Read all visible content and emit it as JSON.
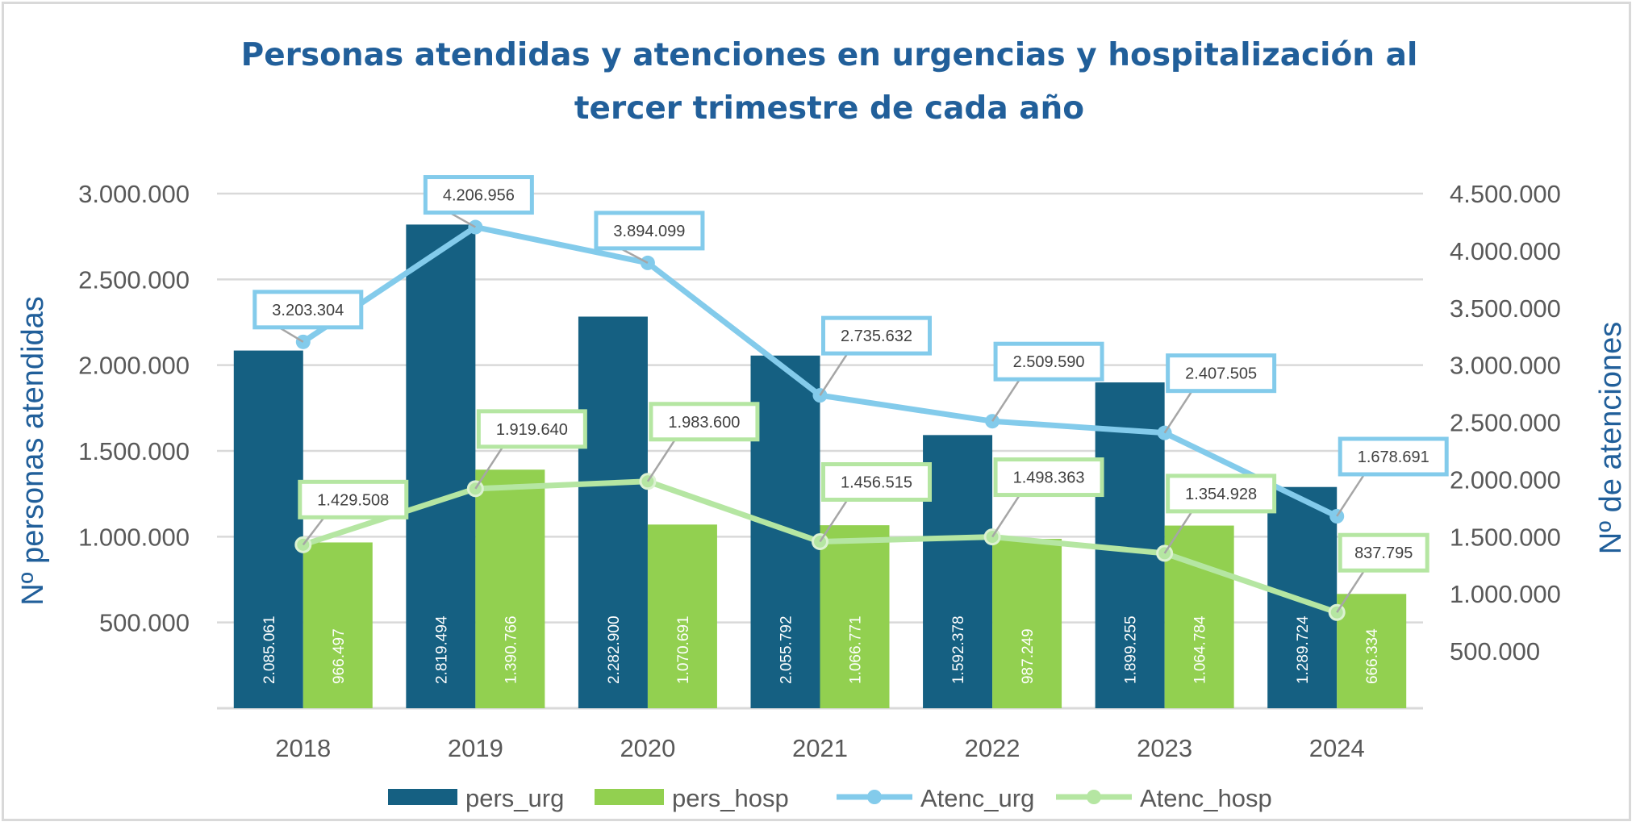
{
  "chart_data": {
    "type": "bar",
    "title_lines": [
      "Personas atendidas y atenciones en urgencias y hospitalización al",
      "tercer trimestre de cada año"
    ],
    "categories": [
      "2018",
      "2019",
      "2020",
      "2021",
      "2022",
      "2023",
      "2024"
    ],
    "ylabel_left": "Nº personas atendidas",
    "ylabel_right": "Nº de atenciones",
    "ylim_left": [
      0,
      3000000
    ],
    "ylim_right": [
      0,
      4500000
    ],
    "left_ticks": [
      "500.000",
      "1.000.000",
      "1.500.000",
      "2.000.000",
      "2.500.000",
      "3.000.000"
    ],
    "left_tick_values": [
      500000,
      1000000,
      1500000,
      2000000,
      2500000,
      3000000
    ],
    "right_ticks": [
      "500.000",
      "1.000.000",
      "1.500.000",
      "2.000.000",
      "2.500.000",
      "3.000.000",
      "3.500.000",
      "4.000.000",
      "4.500.000"
    ],
    "right_tick_values": [
      500000,
      1000000,
      1500000,
      2000000,
      2500000,
      3000000,
      3500000,
      4000000,
      4500000
    ],
    "grid": true,
    "legend_position": "bottom",
    "series": [
      {
        "name": "pers_urg",
        "kind": "bar",
        "axis": "left",
        "color": "#156082",
        "values": [
          2085061,
          2819494,
          2282900,
          2055792,
          1592378,
          1899255,
          1289724
        ],
        "labels": [
          "2.085.061",
          "2.819.494",
          "2.282.900",
          "2.055.792",
          "1.592.378",
          "1.899.255",
          "1.289.724"
        ]
      },
      {
        "name": "pers_hosp",
        "kind": "bar",
        "axis": "left",
        "color": "#92d050",
        "values": [
          966497,
          1390766,
          1070691,
          1066771,
          987249,
          1064784,
          666334
        ],
        "labels": [
          "966.497",
          "1.390.766",
          "1.070.691",
          "1.066.771",
          "987.249",
          "1.064.784",
          "666.334"
        ]
      },
      {
        "name": "Atenc_urg",
        "kind": "line",
        "axis": "right",
        "color": "#83cbeb",
        "values": [
          3203304,
          4206956,
          3894099,
          2735632,
          2509590,
          2407505,
          1678691
        ],
        "labels": [
          "3.203.304",
          "4.206.956",
          "3.894.099",
          "2.735.632",
          "2.509.590",
          "2.407.505",
          "1.678.691"
        ]
      },
      {
        "name": "Atenc_hosp",
        "kind": "line",
        "axis": "right",
        "color": "#b5e6a2",
        "values": [
          1429508,
          1919640,
          1983600,
          1456515,
          1498363,
          1354928,
          837795
        ],
        "labels": [
          "1.429.508",
          "1.919.640",
          "1.983.600",
          "1.456.515",
          "1.498.363",
          "1.354.928",
          "837.795"
        ]
      }
    ]
  }
}
